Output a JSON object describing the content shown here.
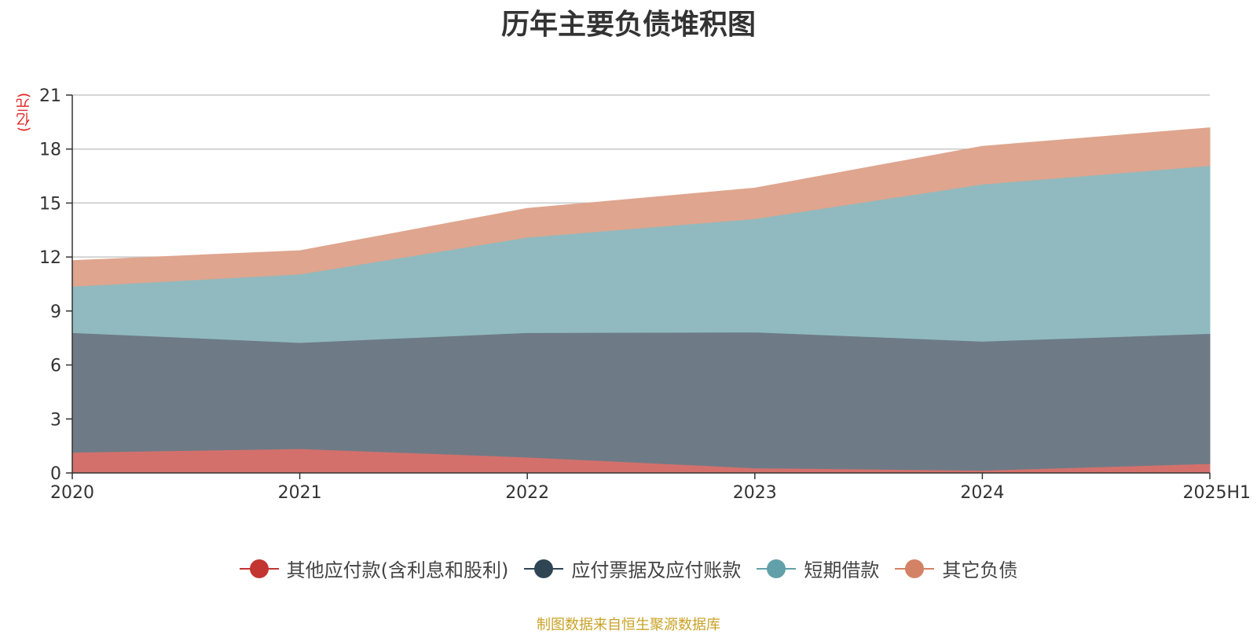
{
  "chart_data": {
    "type": "area",
    "title": "历年主要负债堆积图",
    "unit_label": "(亿元)",
    "categories": [
      "2020",
      "2021",
      "2022",
      "2023",
      "2024",
      "2025H1"
    ],
    "ylim": [
      0,
      21
    ],
    "yticks": [
      "0",
      "3",
      "6",
      "9",
      "12",
      "15",
      "18",
      "21"
    ],
    "stacked": true,
    "grid": true,
    "legend_position": "bottom",
    "series": [
      {
        "name": "其他应付款(含利息和股利)",
        "color": "#c23531",
        "fill": "#d4706c",
        "values": [
          1.15,
          1.35,
          0.88,
          0.28,
          0.15,
          0.52
        ]
      },
      {
        "name": "应付票据及应付账款",
        "color": "#2f4554",
        "fill": "#6e7b86",
        "values": [
          6.65,
          5.9,
          6.92,
          7.55,
          7.17,
          7.23
        ]
      },
      {
        "name": "短期借款",
        "color": "#61a0a8",
        "fill": "#90babf",
        "values": [
          2.57,
          3.8,
          5.3,
          6.3,
          8.73,
          9.33
        ]
      },
      {
        "name": "其它负债",
        "color": "#d48265",
        "fill": "#dfa58e",
        "values": [
          1.43,
          1.3,
          1.6,
          1.7,
          2.1,
          2.1
        ]
      }
    ]
  },
  "footer": "制图数据来自恒生聚源数据库"
}
